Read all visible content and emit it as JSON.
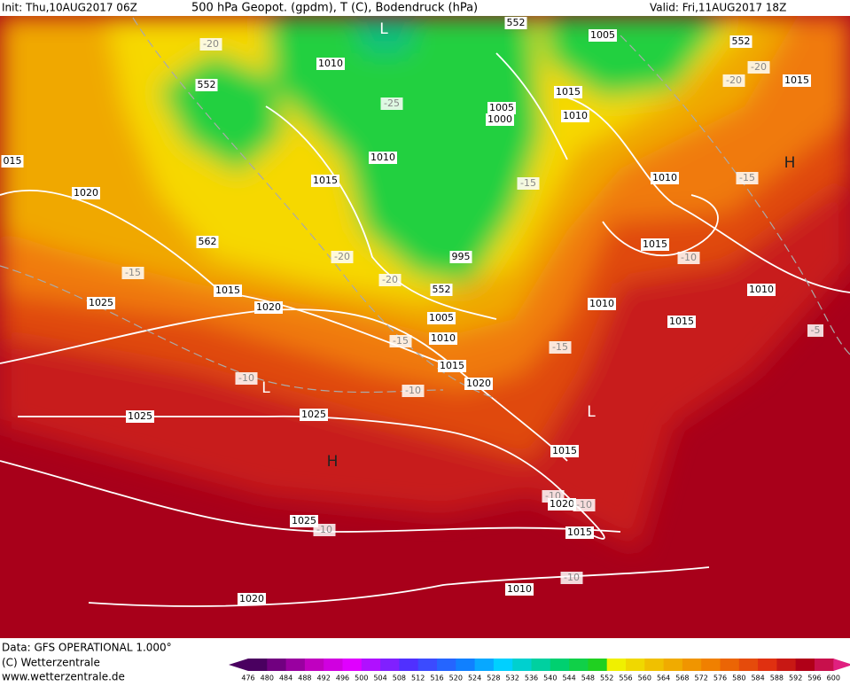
{
  "header": {
    "left": "Init: Thu,10AUG2017 06Z",
    "center": "500 hPa Geopot. (gpdm), T (C), Bodendruck (hPa)",
    "right": "Valid: Fri,11AUG2017 18Z"
  },
  "footer": {
    "line1": "Data: GFS OPERATIONAL 1.000°",
    "line2": "(C) Wetterzentrale",
    "line3": "www.wetterzentrale.de"
  },
  "colorbar": {
    "labels": [
      476,
      480,
      484,
      488,
      492,
      496,
      500,
      504,
      508,
      512,
      516,
      520,
      524,
      528,
      532,
      536,
      540,
      544,
      548,
      552,
      556,
      560,
      564,
      568,
      572,
      576,
      580,
      584,
      588,
      592,
      596,
      600
    ]
  },
  "map_labels": [
    "L",
    "552",
    "1010",
    "1005",
    "552",
    "-20",
    "552",
    "-25",
    "1005",
    "1000",
    "1015",
    "1010",
    "-20",
    "-20",
    "1015",
    "015",
    "1010",
    "1015",
    "-15",
    "1010",
    "-15",
    "H",
    "1020",
    "562",
    "-20",
    "995",
    "1015",
    "-10",
    "-15",
    "-20",
    "1015",
    "552",
    "1010",
    "1025",
    "1020",
    "1010",
    "1005",
    "1015",
    "-5",
    "1010",
    "-15",
    "-15",
    "1015",
    "-10",
    "L",
    "1020",
    "-10",
    "L",
    "1025",
    "1025",
    "H",
    "1015",
    "-10",
    "1020",
    "-10",
    "1025",
    "-10",
    "1015",
    "-10",
    "1010",
    "1020"
  ]
}
